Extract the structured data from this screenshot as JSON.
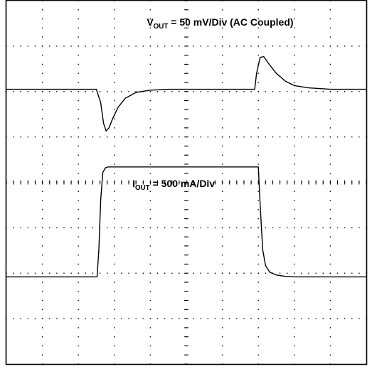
{
  "chart_data": {
    "type": "line",
    "title": "",
    "grid": true,
    "grid_divisions": {
      "horizontal": 10,
      "vertical": 8
    },
    "series": [
      {
        "name_main": "V",
        "name_sub": "OUT",
        "scale_text": " = 50 mV/Div (AC Coupled)",
        "units_per_div": 50,
        "unit": "mV",
        "baseline_div": 6.05,
        "x_div": [
          0,
          2.5,
          2.62,
          2.7,
          2.77,
          2.85,
          2.95,
          3.1,
          3.3,
          3.6,
          4.0,
          4.5,
          5.0,
          6.0,
          6.9,
          6.95,
          7.05,
          7.15,
          7.3,
          7.5,
          7.75,
          8.0,
          8.4,
          9.0,
          10.0
        ],
        "y_div": [
          0,
          0,
          -0.3,
          -0.75,
          -0.92,
          -0.85,
          -0.65,
          -0.4,
          -0.2,
          -0.07,
          -0.02,
          0,
          0,
          0,
          0,
          0.35,
          0.7,
          0.72,
          0.55,
          0.35,
          0.18,
          0.08,
          0.03,
          0,
          0
        ]
      },
      {
        "name_main": "I",
        "name_sub": "OUT",
        "scale_text": " = 500 mA/Div",
        "units_per_div": 500,
        "unit": "mA",
        "baseline_div": 1.92,
        "x_div": [
          0,
          2.52,
          2.57,
          2.62,
          2.68,
          2.75,
          2.82,
          2.9,
          3.0,
          7.0,
          7.05,
          7.12,
          7.2,
          7.32,
          7.5,
          7.75,
          8.0,
          10.0
        ],
        "y_div": [
          0,
          0,
          0.6,
          1.7,
          2.3,
          2.4,
          2.42,
          2.42,
          2.42,
          2.42,
          1.6,
          0.6,
          0.25,
          0.1,
          0.04,
          0.01,
          0,
          0
        ]
      }
    ],
    "labels": [
      {
        "series_index": 0,
        "pos_div": [
          3.9,
          7.45
        ],
        "size": 14
      },
      {
        "series_index": 1,
        "pos_div": [
          3.5,
          3.9
        ],
        "size": 14
      }
    ]
  }
}
